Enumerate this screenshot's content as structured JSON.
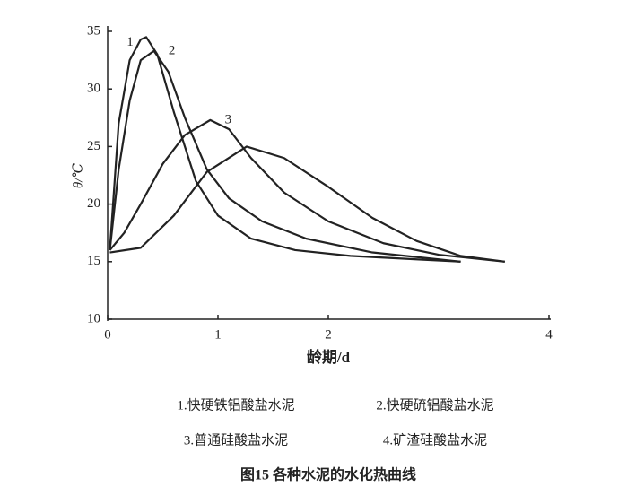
{
  "chart_data": {
    "type": "line",
    "y_label": "θ/℃",
    "x_label": "龄期/d",
    "xlim": [
      0,
      4
    ],
    "xticks": [
      0,
      1,
      2,
      4
    ],
    "ylim": [
      10,
      35
    ],
    "yticks": [
      10,
      15,
      20,
      25,
      30,
      35
    ],
    "series": [
      {
        "name": "1",
        "color": "#222222",
        "label_side": "left",
        "x": [
          0.02,
          0.1,
          0.2,
          0.3,
          0.35,
          0.45,
          0.6,
          0.8,
          1.0,
          1.3,
          1.7,
          2.2,
          2.8,
          3.2
        ],
        "values": [
          16,
          27,
          32.5,
          34.3,
          34.5,
          33,
          28,
          22,
          19,
          17,
          16,
          15.5,
          15.2,
          15
        ]
      },
      {
        "name": "2",
        "color": "#222222",
        "label_side": "right",
        "x": [
          0.02,
          0.1,
          0.2,
          0.3,
          0.42,
          0.55,
          0.7,
          0.9,
          1.1,
          1.4,
          1.8,
          2.4,
          3.0,
          3.2
        ],
        "values": [
          16,
          23,
          29,
          32.5,
          33.3,
          31.5,
          27.5,
          23,
          20.5,
          18.5,
          17,
          15.8,
          15.2,
          15
        ]
      },
      {
        "name": "3",
        "color": "#222222",
        "label_side": "right",
        "x": [
          0.02,
          0.15,
          0.3,
          0.5,
          0.7,
          0.93,
          1.1,
          1.3,
          1.6,
          2.0,
          2.5,
          3.0,
          3.6
        ],
        "values": [
          16,
          17.5,
          20,
          23.5,
          26,
          27.3,
          26.5,
          24,
          21,
          18.5,
          16.6,
          15.6,
          15
        ]
      },
      {
        "color": "#222222",
        "x": [
          0.02,
          0.3,
          0.6,
          0.9,
          1.26,
          1.6,
          2.0,
          2.4,
          2.8,
          3.2,
          3.6
        ],
        "values": [
          15.8,
          16.2,
          19,
          22.8,
          25,
          24,
          21.5,
          18.8,
          16.8,
          15.5,
          15
        ]
      }
    ],
    "legend_notes": [
      "1.快硬铁铝酸盐水泥",
      "2.快硬硫铝酸盐水泥",
      "3.普通硅酸盐水泥",
      "4.矿渣硅酸盐水泥"
    ],
    "caption": "图15  各种水泥的水化热曲线"
  }
}
